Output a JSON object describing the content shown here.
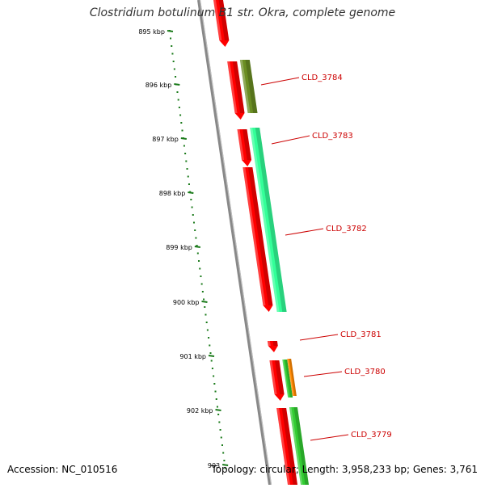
{
  "title": "Clostridium botulinum B1 str. Okra, complete genome",
  "accession": "Accession: NC_010516",
  "topology": "Topology: circular; Length: 3,958,233 bp; Genes: 3,761",
  "ticks": [
    "895 kbp",
    "896 kbp",
    "897 kbp",
    "898 kbp",
    "899 kbp",
    "900 kbp",
    "901 kbp",
    "902 kbp",
    "903"
  ],
  "gene_labels": [
    "CLD_3784",
    "CLD_3783",
    "CLD_3782",
    "CLD_3781",
    "CLD_3780",
    "CLD_3779"
  ],
  "colors": {
    "label_red": "#cc0000",
    "tick_green": "#1a7a1a",
    "backbone": "#888888",
    "gene_red": "#ff0000",
    "olive": "#6b8e23",
    "mint": "#33ff99",
    "green": "#33cc33",
    "orange": "#ff8800"
  }
}
